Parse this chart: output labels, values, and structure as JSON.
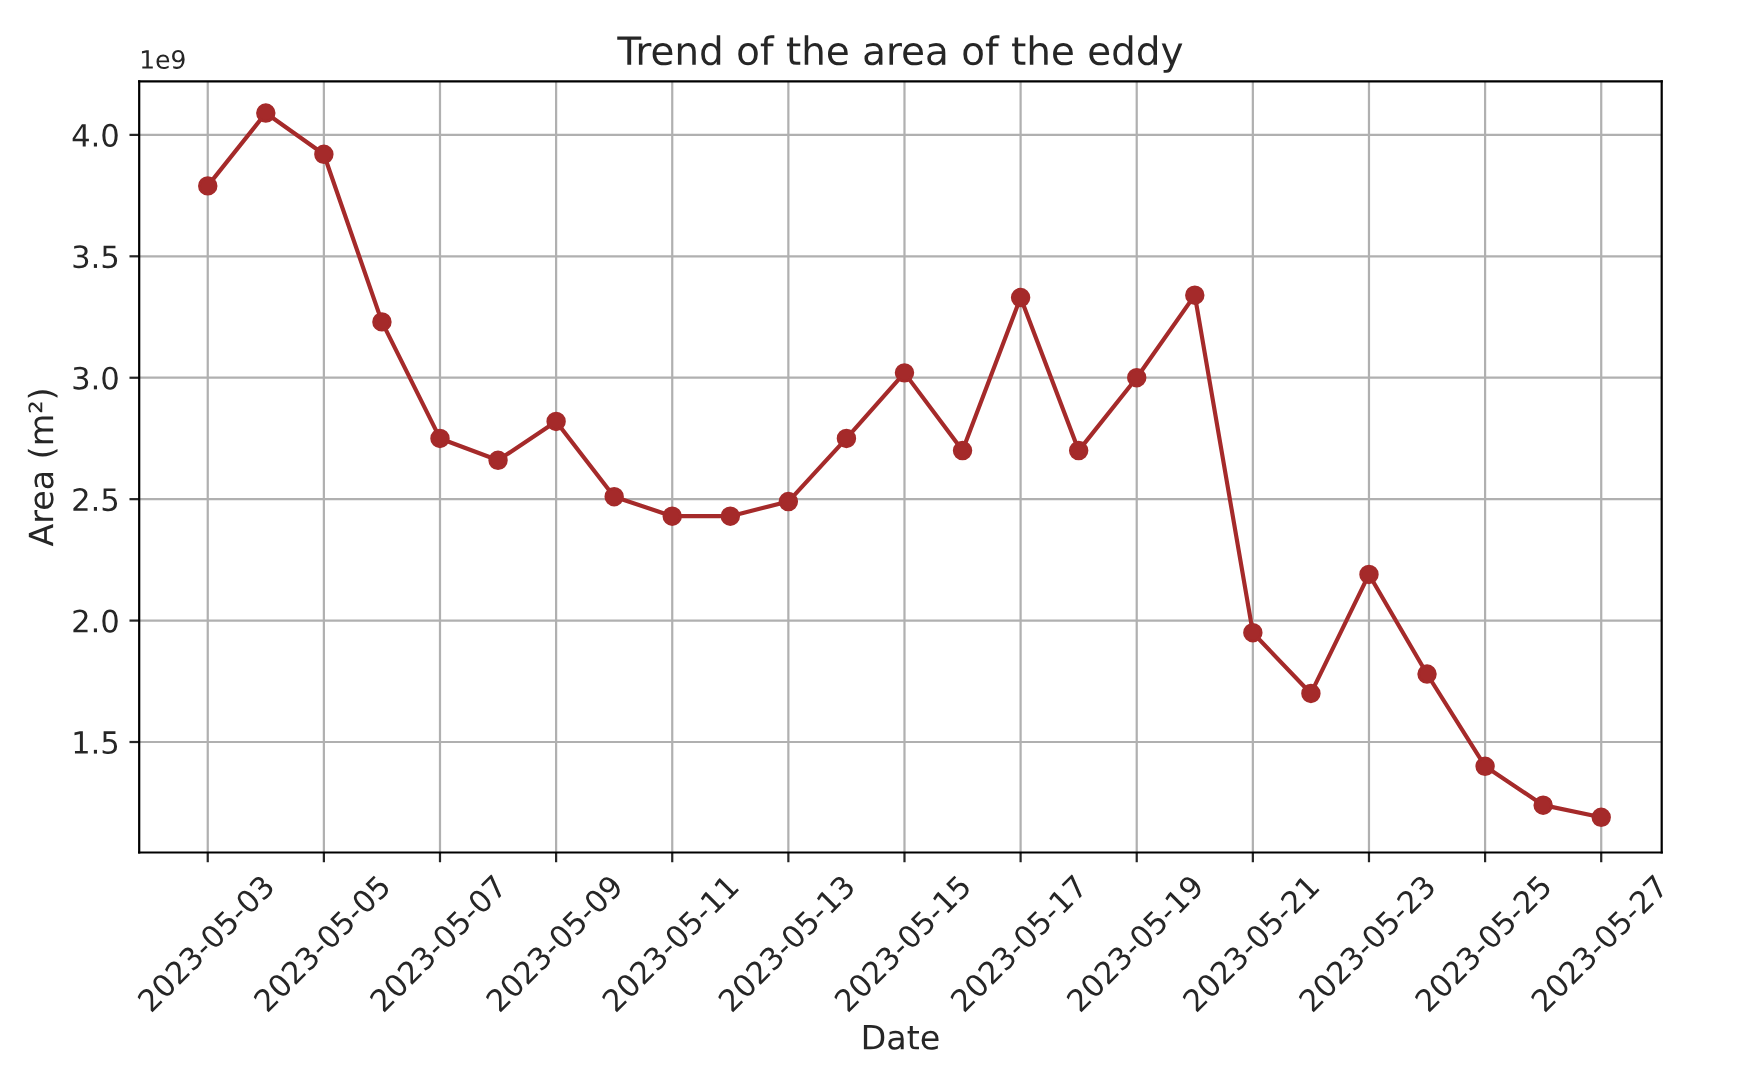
{
  "chart_data": {
    "type": "line",
    "title": "Trend of the area of the eddy",
    "xlabel": "Date",
    "ylabel": "Area (m²)",
    "annotations": [
      "1e9"
    ],
    "x": [
      "2023-05-03",
      "2023-05-04",
      "2023-05-05",
      "2023-05-06",
      "2023-05-07",
      "2023-05-08",
      "2023-05-09",
      "2023-05-10",
      "2023-05-11",
      "2023-05-12",
      "2023-05-13",
      "2023-05-14",
      "2023-05-15",
      "2023-05-16",
      "2023-05-17",
      "2023-05-18",
      "2023-05-19",
      "2023-05-20",
      "2023-05-21",
      "2023-05-22",
      "2023-05-23",
      "2023-05-24",
      "2023-05-25",
      "2023-05-26",
      "2023-05-27"
    ],
    "series": [
      {
        "color": "#a52a2a",
        "values": [
          3.79,
          4.09,
          3.92,
          3.23,
          2.75,
          2.66,
          2.82,
          2.51,
          2.43,
          2.43,
          2.49,
          2.75,
          3.02,
          2.7,
          3.33,
          2.7,
          3.0,
          3.34,
          1.95,
          1.7,
          2.19,
          1.78,
          1.4,
          1.24,
          1.19
        ]
      }
    ],
    "xlim": [
      "2023-05-01T19:40",
      "2023-05-28T01:00"
    ],
    "xticks": [
      "2023-05-03",
      "2023-05-05",
      "2023-05-07",
      "2023-05-09",
      "2023-05-11",
      "2023-05-13",
      "2023-05-15",
      "2023-05-17",
      "2023-05-19",
      "2023-05-21",
      "2023-05-23",
      "2023-05-25",
      "2023-05-27"
    ],
    "ylim": [
      1.045,
      4.22
    ],
    "yticks": [
      {
        "value": 1.5,
        "label": "1.5"
      },
      {
        "value": 2.0,
        "label": "2.0"
      },
      {
        "value": 2.5,
        "label": "2.5"
      },
      {
        "value": 3.0,
        "label": "3.0"
      },
      {
        "value": 3.5,
        "label": "3.5"
      },
      {
        "value": 4.0,
        "label": "4.0"
      }
    ],
    "grid": true,
    "marker": "circle",
    "line_style": "solid",
    "legend": false
  }
}
